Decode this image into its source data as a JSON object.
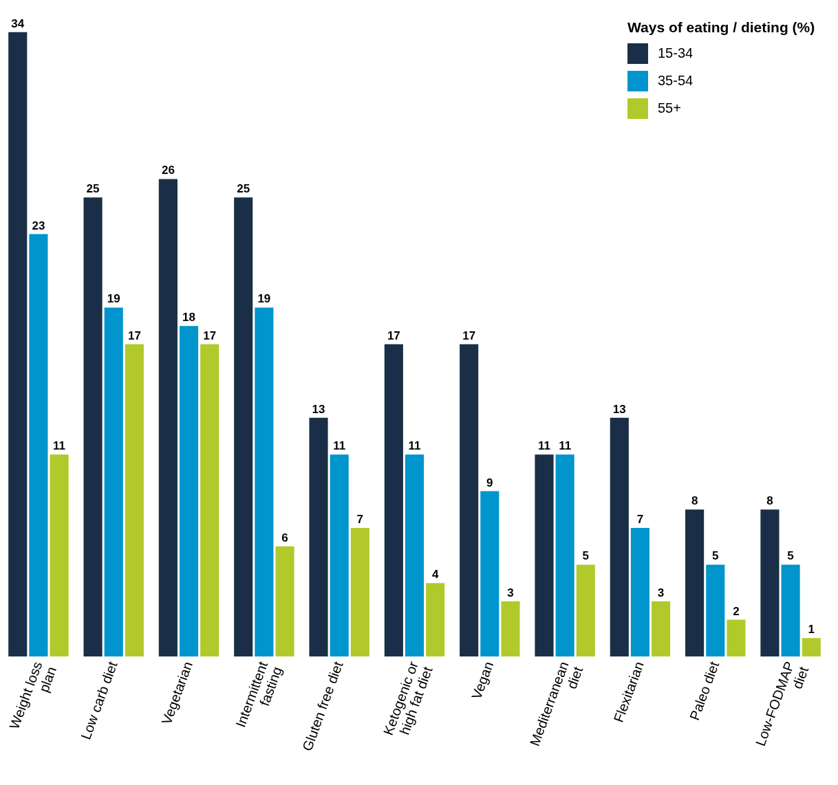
{
  "chart_data": {
    "type": "bar",
    "categories": [
      "Weight loss\nplan",
      "Low carb diet",
      "Vegetarian",
      "Intermittent\nfasting",
      "Gluten free diet",
      "Ketogenic or\nhigh fat diet",
      "Vegan",
      "Mediterranean\ndiet",
      "Flexitarian",
      "Paleo diet",
      "Low-FODMAP\ndiet"
    ],
    "legend_title": "Ways of eating / dieting (%)",
    "series": [
      {
        "name": "15-34",
        "color": "#1a2f47",
        "values": [
          34,
          25,
          26,
          25,
          13,
          17,
          17,
          11,
          13,
          8,
          8
        ]
      },
      {
        "name": "35-54",
        "color": "#0095cc",
        "values": [
          23,
          19,
          18,
          19,
          11,
          11,
          9,
          11,
          7,
          5,
          5
        ]
      },
      {
        "name": "55+",
        "color": "#b2c92c",
        "values": [
          11,
          17,
          17,
          6,
          7,
          4,
          3,
          5,
          3,
          2,
          1
        ]
      }
    ],
    "data_labels": true,
    "legend": "top right",
    "grid": false
  }
}
